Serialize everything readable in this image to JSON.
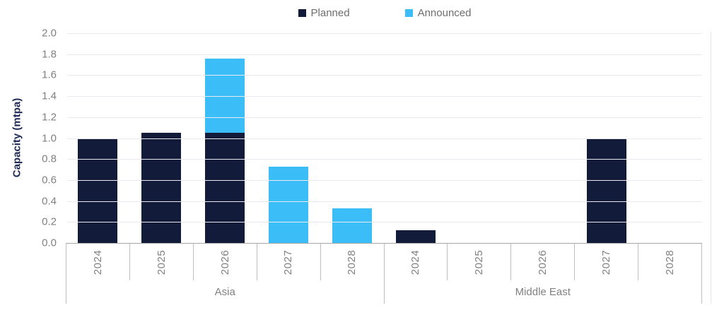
{
  "chart_data": {
    "type": "bar",
    "stacked": true,
    "title": "",
    "xlabel": "",
    "ylabel": "Capacity (mtpa)",
    "ylim": [
      0,
      2.0
    ],
    "yticks": [
      0.0,
      0.2,
      0.4,
      0.6,
      0.8,
      1.0,
      1.2,
      1.4,
      1.6,
      1.8,
      2.0
    ],
    "grid": true,
    "legend_position": "top-center",
    "groups": [
      {
        "label": "Asia",
        "categories": [
          "2024",
          "2025",
          "2026",
          "2027",
          "2028"
        ]
      },
      {
        "label": "Middle East",
        "categories": [
          "2024",
          "2025",
          "2026",
          "2027",
          "2028"
        ]
      }
    ],
    "series": [
      {
        "name": "Planned",
        "color": "#131B3B",
        "values": {
          "Asia": [
            0.99,
            1.05,
            1.05,
            0,
            0
          ],
          "Middle East": [
            0.12,
            0,
            0,
            0.99,
            0
          ]
        }
      },
      {
        "name": "Announced",
        "color": "#3BBEF7",
        "values": {
          "Asia": [
            0,
            0,
            0.71,
            0.73,
            0.33
          ],
          "Middle East": [
            0,
            0,
            0,
            0,
            0
          ]
        }
      }
    ]
  },
  "colors": {
    "background": "#FFFFFF",
    "grid": "#E9E9EF",
    "axis": "#A6A6A6",
    "separator": "#BFBFBF",
    "tick_text": "#808080",
    "axis_title_text": "#1F2A55",
    "legend_text": "#6E6E6E"
  }
}
